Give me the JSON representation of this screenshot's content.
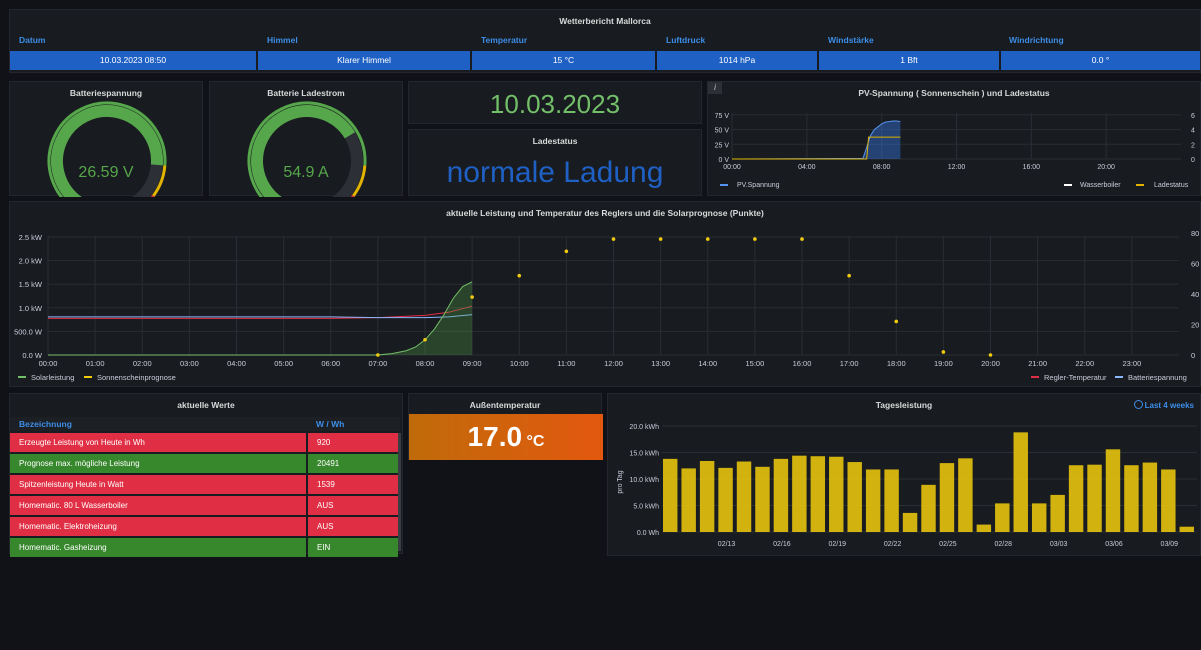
{
  "weather": {
    "title": "Wetterbericht Mallorca",
    "headers": [
      "Datum",
      "Himmel",
      "Temperatur",
      "Luftdruck",
      "Windstärke",
      "Windrichtung"
    ],
    "values": [
      "10.03.2023 08:50",
      "Klarer Himmel",
      "15 °C",
      "1014 hPa",
      "1 Bft",
      "0.0 °"
    ]
  },
  "gauge_voltage": {
    "title": "Batteriespannung",
    "value": "26.59 V",
    "fraction": 0.82
  },
  "gauge_current": {
    "title": "Batterie Ladestrom",
    "value": "54.9 A",
    "fraction": 0.7
  },
  "date_panel": {
    "value": "10.03.2023"
  },
  "ladestatus": {
    "title": "Ladestatus",
    "value": "normale Ladung"
  },
  "pv_panel": {
    "title": "PV-Spannung ( Sonnenschein ) und Ladestatus",
    "info_icon": "i",
    "legend": [
      "PV.Spannung",
      "Wasserboiler",
      "Ladestatus"
    ]
  },
  "main_chart": {
    "title": "aktuelle Leistung und Temperatur des Reglers und die Solarprognose (Punkte)",
    "legend_left": [
      "Solarleistung",
      "Sonnenscheinprognose"
    ],
    "legend_right": [
      "Regler-Temperatur",
      "Batteriespannung"
    ]
  },
  "values_table": {
    "title": "aktuelle Werte",
    "headers": [
      "Bezeichnung",
      "W / Wh"
    ],
    "rows": [
      {
        "label": "Erzeugte Leistung von Heute in Wh",
        "value": "920",
        "status": "red"
      },
      {
        "label": "Prognose max. mögliche Leistung",
        "value": "20491",
        "status": "green"
      },
      {
        "label": "Spitzenleistung Heute in Watt",
        "value": "1539",
        "status": "red"
      },
      {
        "label": "Homematic. 80 L Wasserboiler",
        "value": "AUS",
        "status": "red"
      },
      {
        "label": "Homematic. Elektroheizung",
        "value": "AUS",
        "status": "red"
      },
      {
        "label": "Homematic. Gasheizung",
        "value": "EIN",
        "status": "green"
      }
    ]
  },
  "outdoor": {
    "title": "Außentemperatur",
    "value": "17.0",
    "unit": "°C"
  },
  "daily": {
    "title": "Tagesleistung",
    "range_label": "Last 4 weeks",
    "ylabel": "pro Tag"
  },
  "colors": {
    "green": "#56a64b",
    "yellow": "#e0b400",
    "blue": "#1f60c4",
    "red": "#e02f44",
    "orange": "#e07c0f"
  },
  "chart_data": [
    {
      "type": "line",
      "title": "PV-Spannung ( Sonnenschein ) und Ladestatus",
      "x_ticks": [
        "00:00",
        "04:00",
        "08:00",
        "12:00",
        "16:00",
        "20:00"
      ],
      "y_ticks_left": [
        "0 V",
        "25 V",
        "50 V",
        "75 V"
      ],
      "y_ticks_right": [
        "0",
        "2",
        "4",
        "6"
      ],
      "ylim_left": [
        0,
        85
      ],
      "ylim_right": [
        0,
        6.8
      ],
      "series": [
        {
          "name": "PV.Spannung",
          "x": [
            0,
            7.0,
            7.2,
            7.4,
            7.6,
            7.8,
            8.0,
            8.2,
            8.4,
            8.6,
            8.8,
            9.0
          ],
          "values": [
            0,
            1,
            20,
            40,
            50,
            55,
            60,
            63,
            64,
            65,
            65,
            64
          ]
        },
        {
          "name": "Ladestatus",
          "x": [
            0,
            7.2,
            7.3,
            9.0
          ],
          "values": [
            0,
            0,
            3,
            3
          ]
        }
      ]
    },
    {
      "type": "line",
      "title": "aktuelle Leistung und Temperatur des Reglers und die Solarprognose (Punkte)",
      "x_ticks": [
        "00:00",
        "01:00",
        "02:00",
        "03:00",
        "04:00",
        "05:00",
        "06:00",
        "07:00",
        "08:00",
        "09:00",
        "10:00",
        "11:00",
        "12:00",
        "13:00",
        "14:00",
        "15:00",
        "16:00",
        "17:00",
        "18:00",
        "19:00",
        "20:00",
        "21:00",
        "22:00",
        "23:00"
      ],
      "y_ticks_left": [
        "0.0 W",
        "500.0 W",
        "1.0 kW",
        "1.5 kW",
        "2.0 kW",
        "2.5 kW"
      ],
      "y_ticks_right": [
        "0",
        "20",
        "40",
        "60",
        "80"
      ],
      "ylim_left": [
        0,
        2500
      ],
      "ylim_right": [
        0,
        80
      ],
      "series": [
        {
          "name": "Solarleistung",
          "x": [
            0,
            7.0,
            7.3,
            7.6,
            7.8,
            8.0,
            8.2,
            8.4,
            8.6,
            8.8,
            9.0
          ],
          "values": [
            0,
            0,
            30,
            90,
            170,
            320,
            550,
            850,
            1200,
            1450,
            1550
          ]
        },
        {
          "name": "Sonnenscheinprognose",
          "x": [
            7,
            8,
            9,
            10,
            11,
            12,
            13,
            14,
            15,
            16,
            17,
            18,
            19,
            20
          ],
          "values": [
            0,
            10,
            38,
            52,
            68,
            76,
            76,
            76,
            76,
            76,
            52,
            22,
            2,
            0
          ]
        },
        {
          "name": "Regler-Temperatur",
          "x": [
            0,
            6,
            7,
            8,
            8.5,
            9
          ],
          "values": [
            24,
            24,
            24.5,
            26,
            28,
            32
          ]
        },
        {
          "name": "Batteriespannung",
          "x": [
            0,
            6,
            7,
            8,
            8.5,
            9
          ],
          "values": [
            25,
            25,
            24.5,
            24.5,
            25,
            26.5
          ]
        }
      ]
    },
    {
      "type": "bar",
      "title": "Tagesleistung",
      "ylabel": "pro Tag",
      "y_ticks": [
        "0.0 Wh",
        "5.0 kWh",
        "10.0 kWh",
        "15.0 kWh",
        "20.0 kWh"
      ],
      "ylim": [
        0,
        22
      ],
      "x_ticks": [
        "02/13",
        "02/16",
        "02/19",
        "02/22",
        "02/25",
        "02/28",
        "03/03",
        "03/06",
        "03/09"
      ],
      "values": [
        13.8,
        12.0,
        13.4,
        12.1,
        13.3,
        12.3,
        13.8,
        14.4,
        14.3,
        14.2,
        13.2,
        11.8,
        11.8,
        3.6,
        8.9,
        13.0,
        13.9,
        1.4,
        5.4,
        18.8,
        5.4,
        7.0,
        12.6,
        12.7,
        15.6,
        12.6,
        13.1,
        11.8,
        1.0
      ]
    }
  ],
  "gauge_colors": [
    "green",
    "yellow",
    "red"
  ]
}
